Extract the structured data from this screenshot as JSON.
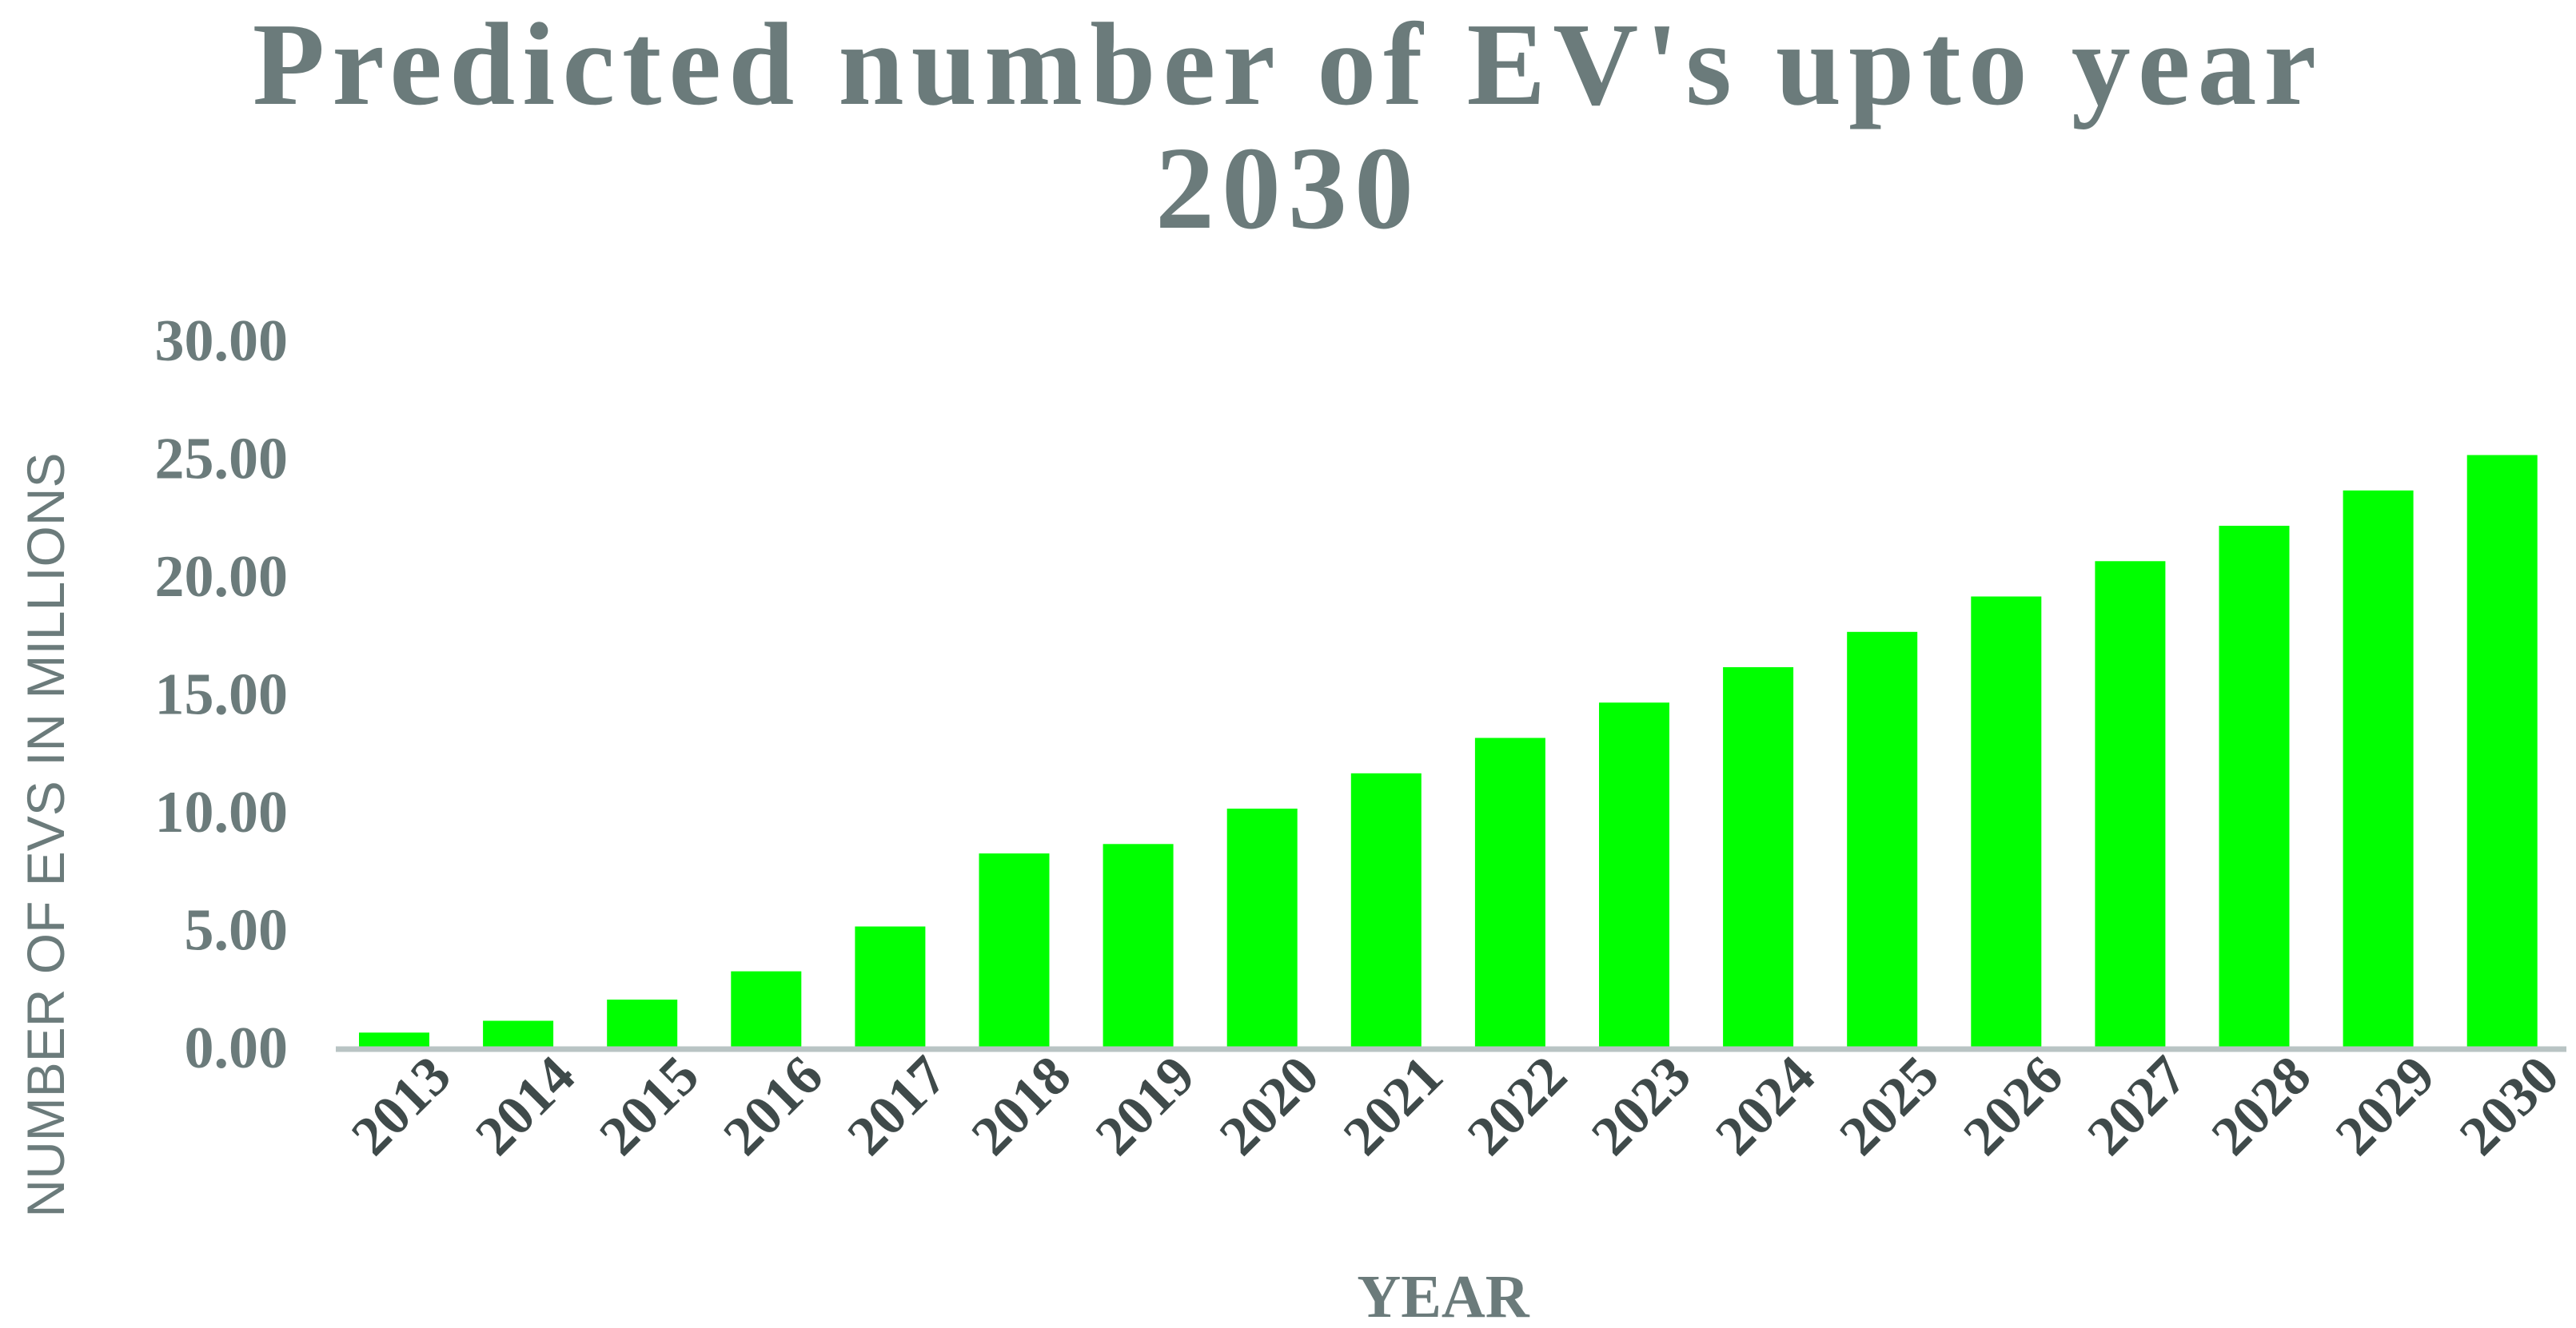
{
  "chart_data": {
    "type": "bar",
    "title_lines": [
      "Predicted number of EV's upto year",
      "2030"
    ],
    "xlabel": "YEAR",
    "ylabel": "NUMBER OF EVS IN MILLIONS",
    "categories": [
      "2013",
      "2014",
      "2015",
      "2016",
      "2017",
      "2018",
      "2019",
      "2020",
      "2021",
      "2022",
      "2023",
      "2024",
      "2025",
      "2026",
      "2027",
      "2028",
      "2029",
      "2030"
    ],
    "values": [
      0.6,
      1.1,
      2.0,
      3.2,
      5.1,
      8.2,
      8.6,
      10.1,
      11.6,
      13.1,
      14.6,
      16.1,
      17.6,
      19.1,
      20.6,
      22.1,
      23.6,
      25.1
    ],
    "ylim": [
      0,
      30
    ],
    "yticks": [
      "0.00",
      "5.00",
      "10.00",
      "15.00",
      "20.00",
      "25.00",
      "30.00"
    ],
    "grid": false,
    "legend": "none",
    "colors": {
      "bar": "#00ff00",
      "text": "#6b7b7b",
      "axis": "#b9c4c4",
      "label_dark": "#3f4a4a"
    }
  }
}
